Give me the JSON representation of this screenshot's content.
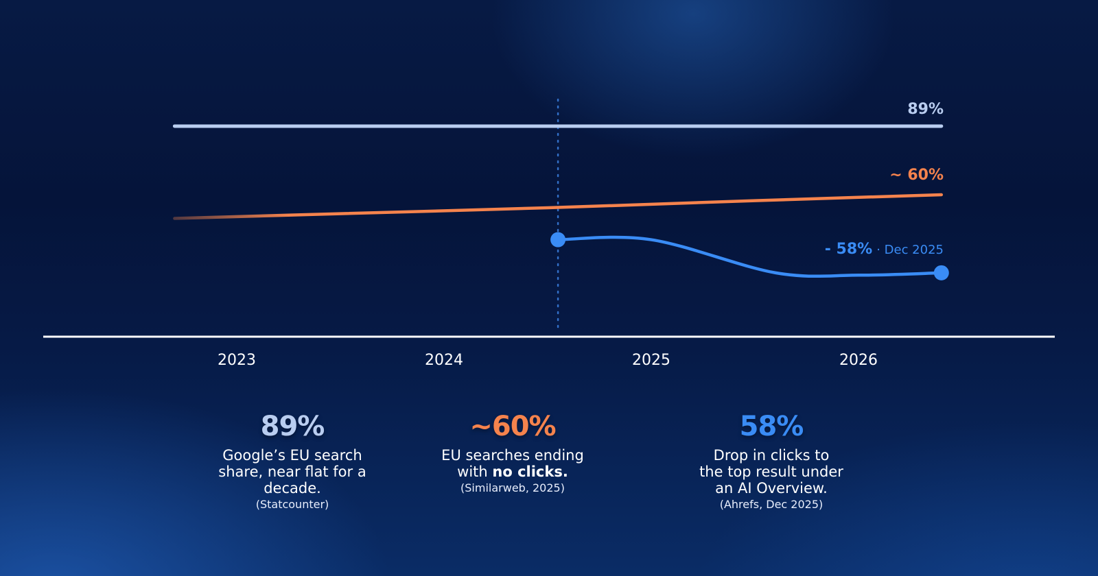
{
  "chart_data": {
    "type": "line",
    "x_axis": {
      "ticks": [
        "2023",
        "2024",
        "2025",
        "2026"
      ]
    },
    "series": [
      {
        "key": "google_share",
        "color": "#b9cdf0",
        "points": [
          [
            2022.7,
            89
          ],
          [
            2026.4,
            89
          ]
        ],
        "end_label": "89%"
      },
      {
        "key": "zero_click",
        "color": "#f5834d",
        "points": [
          [
            2022.7,
            50
          ],
          [
            2023.5,
            52
          ],
          [
            2024.5,
            54.5
          ],
          [
            2025.5,
            57.5
          ],
          [
            2026.4,
            60
          ]
        ],
        "end_label": "~ 60%"
      },
      {
        "key": "ctr_drop",
        "color": "#3a8cf5",
        "points": [
          [
            2024.55,
            41
          ],
          [
            2025.0,
            41
          ],
          [
            2025.6,
            27
          ],
          [
            2026.0,
            26
          ],
          [
            2026.4,
            27
          ]
        ],
        "end_label": "- 58%",
        "end_label_note": "· Dec 2025"
      }
    ],
    "marker_x": 2024.55,
    "grid": false
  },
  "stats": [
    {
      "value": "89%",
      "color": "#b9cdf0",
      "desc_lines": [
        "Google’s EU search",
        "share, near flat for a",
        "decade."
      ],
      "source": "(Statcounter)"
    },
    {
      "value": "~60%",
      "color": "#f5834d",
      "desc_line1": "EU searches ending",
      "desc_line2_prefix": "with ",
      "desc_line2_bold": "no clicks.",
      "source": "(Similarweb, 2025)"
    },
    {
      "value": "58%",
      "color": "#3a8cf5",
      "desc_lines": [
        "Drop in clicks to",
        "the top result under",
        "an AI Overview."
      ],
      "source": "(Ahrefs, Dec 2025)"
    }
  ]
}
